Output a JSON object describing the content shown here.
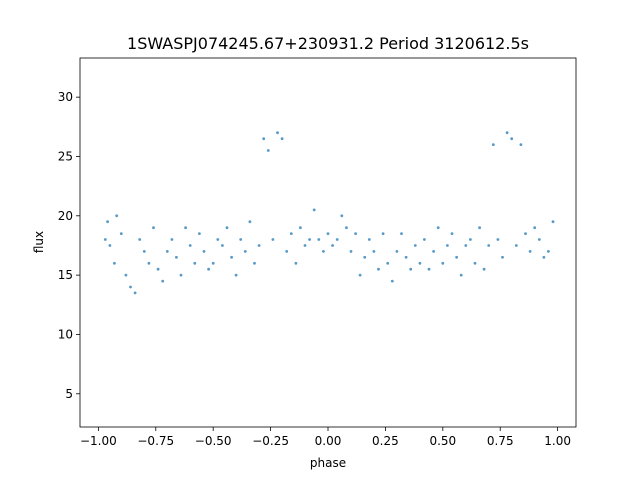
{
  "chart_data": {
    "type": "scatter",
    "title": "1SWASPJ074245.67+230931.2 Period 3120612.5s",
    "xlabel": "phase",
    "ylabel": "flux",
    "xlim": [
      -1.08,
      1.08
    ],
    "ylim": [
      2.2,
      33.3
    ],
    "xticks": [
      -1.0,
      -0.75,
      -0.5,
      -0.25,
      0.0,
      0.25,
      0.5,
      0.75,
      1.0
    ],
    "xtick_labels": [
      "−1.00",
      "−0.75",
      "−0.50",
      "−0.25",
      "0.00",
      "0.25",
      "0.50",
      "0.75",
      "1.00"
    ],
    "yticks": [
      5,
      10,
      15,
      20,
      25,
      30
    ],
    "ytick_labels": [
      "5",
      "10",
      "15",
      "20",
      "25",
      "30"
    ],
    "grid": false,
    "marker_color": "#1f77b4",
    "series": [
      {
        "x": [
          -0.97,
          -0.96,
          -0.95,
          -0.93,
          -0.92,
          -0.9,
          -0.88,
          -0.86,
          -0.84,
          -0.82,
          -0.8,
          -0.78,
          -0.76,
          -0.74,
          -0.72,
          -0.7,
          -0.68,
          -0.66,
          -0.64,
          -0.62,
          -0.6,
          -0.58,
          -0.56,
          -0.54,
          -0.52,
          -0.5,
          -0.48,
          -0.46,
          -0.44,
          -0.42,
          -0.4,
          -0.38,
          -0.36,
          -0.34,
          -0.32,
          -0.3,
          -0.28,
          -0.26,
          -0.24,
          -0.22,
          -0.2,
          -0.18,
          -0.16,
          -0.14,
          -0.12,
          -0.1,
          -0.08,
          -0.06,
          -0.04,
          -0.02,
          0.0,
          0.02,
          0.04,
          0.06,
          0.08,
          0.1,
          0.12,
          0.14,
          0.16,
          0.18,
          0.2,
          0.22,
          0.24,
          0.26,
          0.28,
          0.3,
          0.32,
          0.34,
          0.36,
          0.38,
          0.4,
          0.42,
          0.44,
          0.46,
          0.48,
          0.5,
          0.52,
          0.54,
          0.56,
          0.58,
          0.6,
          0.62,
          0.64,
          0.66,
          0.68,
          0.7,
          0.72,
          0.74,
          0.76,
          0.78,
          0.8,
          0.82,
          0.84,
          0.86,
          0.88,
          0.9,
          0.92,
          0.94,
          0.96,
          0.98
        ],
        "y": [
          18.0,
          19.5,
          17.5,
          16.0,
          20.0,
          18.5,
          15.0,
          14.0,
          13.5,
          18.0,
          17.0,
          16.0,
          19.0,
          15.5,
          14.5,
          17.0,
          18.0,
          16.5,
          15.0,
          19.0,
          17.5,
          16.0,
          18.5,
          17.0,
          15.5,
          16.0,
          18.0,
          17.5,
          19.0,
          16.5,
          15.0,
          18.0,
          17.0,
          19.5,
          16.0,
          17.5,
          26.5,
          25.5,
          18.0,
          27.0,
          26.5,
          17.0,
          18.5,
          16.0,
          19.0,
          17.5,
          18.0,
          20.5,
          18.0,
          17.0,
          18.5,
          17.5,
          18.0,
          20.0,
          19.0,
          17.0,
          18.5,
          15.0,
          16.5,
          18.0,
          17.0,
          15.5,
          18.5,
          16.0,
          14.5,
          17.0,
          18.5,
          16.5,
          15.5,
          17.5,
          16.0,
          18.0,
          15.5,
          17.0,
          19.0,
          16.0,
          17.5,
          18.5,
          16.5,
          15.0,
          17.5,
          18.0,
          16.0,
          19.0,
          15.5,
          17.5,
          26.0,
          18.0,
          16.5,
          27.0,
          26.5,
          17.5,
          26.0,
          18.5,
          17.0,
          19.0,
          18.0,
          16.5,
          17.0,
          19.5
        ]
      }
    ]
  }
}
